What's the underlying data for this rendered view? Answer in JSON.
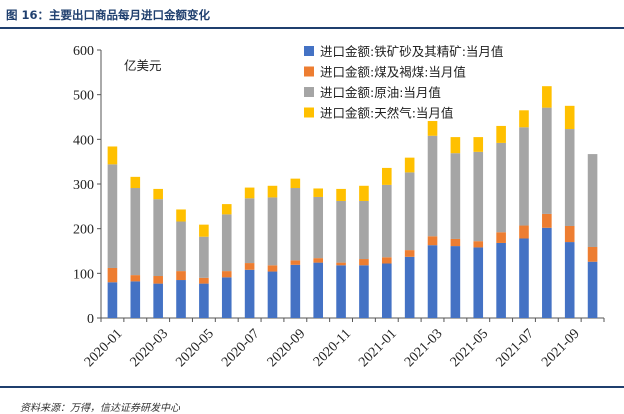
{
  "header": {
    "title": "图 16：主要出口商品每月进口金额变化"
  },
  "source": "资料来源：万得，信达证券研发中心",
  "chart_data": {
    "type": "bar",
    "stacked": true,
    "unit_label": "亿美元",
    "categories": [
      "2020-01",
      "2020-02",
      "2020-03",
      "2020-04",
      "2020-05",
      "2020-06",
      "2020-07",
      "2020-08",
      "2020-09",
      "2020-10",
      "2020-11",
      "2020-12",
      "2021-01",
      "2021-02",
      "2021-03",
      "2021-04",
      "2021-05",
      "2021-06",
      "2021-07",
      "2021-08",
      "2021-09",
      "2021-10"
    ],
    "x_tick_labels": [
      "2020-01",
      "2020-03",
      "2020-05",
      "2020-07",
      "2020-09",
      "2020-11",
      "2021-01",
      "2021-03",
      "2021-05",
      "2021-07",
      "2021-09"
    ],
    "ylim": [
      0,
      600
    ],
    "yticks": [
      0,
      100,
      200,
      300,
      400,
      500,
      600
    ],
    "grid": false,
    "legend_position": "top-right",
    "series": [
      {
        "name": "进口金额:铁矿砂及其精矿:当月值",
        "color": "#4472c4",
        "values": [
          80,
          82,
          77,
          85,
          77,
          91,
          108,
          104,
          119,
          124,
          118,
          118,
          122,
          137,
          163,
          161,
          158,
          168,
          178,
          202,
          170,
          126
        ]
      },
      {
        "name": "进口金额:煤及褐煤:当月值",
        "color": "#ed7d31",
        "values": [
          32,
          14,
          17,
          20,
          13,
          14,
          15,
          14,
          10,
          10,
          6,
          14,
          14,
          15,
          20,
          16,
          14,
          24,
          29,
          31,
          36,
          33
        ]
      },
      {
        "name": "进口金额:原油:当月值",
        "color": "#a5a5a5",
        "values": [
          232,
          195,
          172,
          111,
          92,
          127,
          145,
          152,
          162,
          137,
          138,
          130,
          162,
          174,
          225,
          192,
          200,
          200,
          220,
          238,
          217,
          208
        ]
      },
      {
        "name": "进口金额:天然气:当月值",
        "color": "#ffc000",
        "values": [
          40,
          25,
          23,
          27,
          27,
          23,
          24,
          26,
          21,
          19,
          27,
          34,
          38,
          33,
          33,
          36,
          33,
          38,
          38,
          48,
          52,
          0
        ]
      }
    ]
  }
}
